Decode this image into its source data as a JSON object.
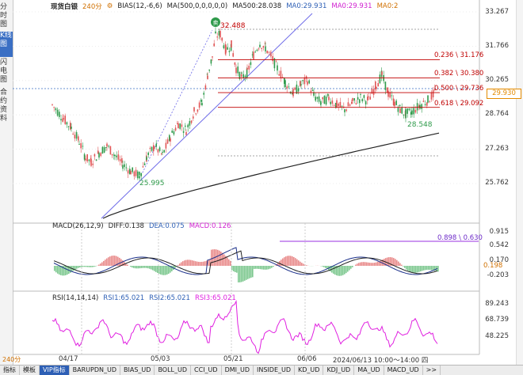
{
  "sidebar": {
    "tabs": [
      {
        "label": "分时图",
        "active": false
      },
      {
        "label": "K线图",
        "active": true
      },
      {
        "label": "闪电图",
        "active": false
      },
      {
        "label": "合约资料",
        "active": false
      }
    ]
  },
  "main_legend": {
    "symbol": "现货白银",
    "period": "240分",
    "bias": "BIAS(12,-6,6)",
    "ma_params": "MA(500,0,0,0,0,0)",
    "ma500": "MA500:28.038",
    "ma0": "MA0:29.931",
    "ma0b": "MA0:29.931",
    "ma0c": "MA0:2"
  },
  "price_axis": [
    "33.267",
    "31.766",
    "30.265",
    "28.764",
    "27.263",
    "25.762"
  ],
  "current_price": "29.930",
  "annotations": {
    "sell_badge": "卖",
    "high": "32.488",
    "low1": "25.995",
    "low2": "28.548"
  },
  "fib_levels": [
    {
      "label": "0.236 \\ 31.176",
      "price": 31.176
    },
    {
      "label": "0.382 \\ 30.380",
      "price": 30.38
    },
    {
      "label": "0.500 \\ 29.736",
      "price": 29.736
    },
    {
      "label": "0.618 \\ 29.092",
      "price": 29.092
    }
  ],
  "macd_legend": {
    "title": "MACD(26,12,9)",
    "diff": "DIFF:0.138",
    "dea": "DEA:0.075",
    "macd": "MACD:0.126"
  },
  "macd_axis": [
    "0.915",
    "0.542",
    "0.170",
    "-0.203"
  ],
  "macd_line_label": "0.898 \\ 0.630",
  "macd_right_values": [
    "0.170",
    "0.198"
  ],
  "rsi_legend": {
    "title": "RSI(14,14,14)",
    "rsi1": "RSI1:65.021",
    "rsi2": "RSI2:65.021",
    "rsi3": "RSI3:65.021"
  },
  "rsi_axis": [
    "89.243",
    "68.739",
    "48.225"
  ],
  "time_axis": [
    "04/17",
    "05/03",
    "05/21",
    "06/06"
  ],
  "status_time": "2024/06/13 10:00～14:00 四",
  "period_badge": "240分",
  "toolbar": [
    "指标",
    "模板",
    "VIP指标",
    "BARUPDN_UD",
    "BIAS_UD",
    "BOLL_UD",
    "CCI_UD",
    "DMI_UD",
    "INSIDE_UD",
    "KD_UD",
    "KDJ_UD",
    "MA_UD",
    "MACD_UD",
    ">>"
  ],
  "colors": {
    "up": "#e05555",
    "down": "#2e9a4a",
    "ma500": "#222222",
    "accent": "#2d5fb5",
    "fib": "#c00000",
    "rsi": "#e020e0"
  }
}
